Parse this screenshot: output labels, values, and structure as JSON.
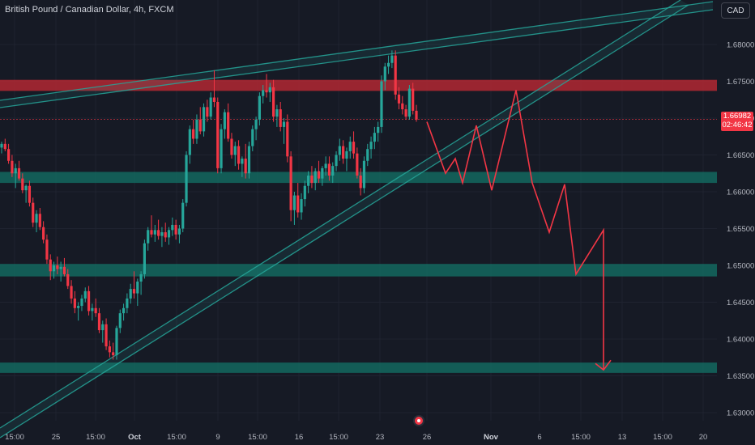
{
  "header": {
    "symbol_title": "British Pound / Canadian Dollar, 4h, FXCM",
    "currency_button": "CAD"
  },
  "price_tag": {
    "price": "1.66982",
    "countdown": "02:46:42"
  },
  "colors": {
    "background": "#161a25",
    "bull": "#26a69a",
    "bear": "#f23645",
    "resistance_zone": "#b22833",
    "support_zone": "#13685f",
    "trendline": "#26a69a",
    "projection": "#f23645",
    "grid": "#1f2330",
    "axis_text": "#b2b5be"
  },
  "chart_data": {
    "type": "candlestick",
    "title": "British Pound / Canadian Dollar, 4h, FXCM",
    "y_axis": {
      "ticks": [
        "1.68000",
        "1.67500",
        "1.67000",
        "1.66500",
        "1.66000",
        "1.65500",
        "1.65000",
        "1.64500",
        "1.64000",
        "1.63500",
        "1.63000"
      ],
      "range": [
        1.628,
        1.686
      ]
    },
    "x_axis": {
      "labels": [
        "15:00",
        "25",
        "15:00",
        "Oct",
        "15:00",
        "9",
        "15:00",
        "16",
        "15:00",
        "23",
        "26",
        "Nov",
        "6",
        "15:00",
        "13",
        "15:00",
        "20"
      ]
    },
    "current_price": 1.66982,
    "zones": [
      {
        "kind": "resistance",
        "low": 1.6737,
        "high": 1.6752
      },
      {
        "kind": "support",
        "low": 1.6612,
        "high": 1.6627
      },
      {
        "kind": "support",
        "low": 1.6485,
        "high": 1.6502
      },
      {
        "kind": "support",
        "low": 1.6354,
        "high": 1.6368
      }
    ],
    "candles_ohlc": [
      [
        1.666,
        1.6668,
        1.6652,
        1.6665
      ],
      [
        1.6665,
        1.6672,
        1.6655,
        1.6658
      ],
      [
        1.6658,
        1.6665,
        1.6638,
        1.6642
      ],
      [
        1.6642,
        1.665,
        1.662,
        1.6625
      ],
      [
        1.6625,
        1.6638,
        1.6605,
        1.6632
      ],
      [
        1.6632,
        1.6642,
        1.6615,
        1.6618
      ],
      [
        1.6618,
        1.6625,
        1.6598,
        1.6602
      ],
      [
        1.6602,
        1.661,
        1.6585,
        1.6608
      ],
      [
        1.6608,
        1.6615,
        1.658,
        1.6585
      ],
      [
        1.6585,
        1.6592,
        1.6552,
        1.6558
      ],
      [
        1.6558,
        1.6575,
        1.6545,
        1.657
      ],
      [
        1.657,
        1.6578,
        1.6548,
        1.6552
      ],
      [
        1.6552,
        1.656,
        1.653,
        1.6535
      ],
      [
        1.6535,
        1.6542,
        1.6502,
        1.6508
      ],
      [
        1.6508,
        1.6515,
        1.648,
        1.6492
      ],
      [
        1.6492,
        1.6505,
        1.6482,
        1.65
      ],
      [
        1.65,
        1.6512,
        1.6488,
        1.6495
      ],
      [
        1.6495,
        1.6505,
        1.6478,
        1.6498
      ],
      [
        1.6498,
        1.651,
        1.6485,
        1.6488
      ],
      [
        1.6488,
        1.6495,
        1.6468,
        1.6472
      ],
      [
        1.6472,
        1.648,
        1.6448,
        1.6455
      ],
      [
        1.6455,
        1.6465,
        1.6435,
        1.6442
      ],
      [
        1.6442,
        1.645,
        1.6425,
        1.6445
      ],
      [
        1.6445,
        1.646,
        1.6438,
        1.6455
      ],
      [
        1.6455,
        1.647,
        1.645,
        1.6465
      ],
      [
        1.6465,
        1.6472,
        1.6432,
        1.6438
      ],
      [
        1.6438,
        1.6448,
        1.6425,
        1.6442
      ],
      [
        1.6442,
        1.6455,
        1.643,
        1.6435
      ],
      [
        1.6435,
        1.6442,
        1.6408,
        1.6412
      ],
      [
        1.6412,
        1.6425,
        1.6395,
        1.642
      ],
      [
        1.642,
        1.6428,
        1.6385,
        1.639
      ],
      [
        1.639,
        1.6398,
        1.6375,
        1.6382
      ],
      [
        1.6382,
        1.6395,
        1.6372,
        1.6378
      ],
      [
        1.6378,
        1.6418,
        1.6372,
        1.6415
      ],
      [
        1.6415,
        1.644,
        1.6408,
        1.6435
      ],
      [
        1.6435,
        1.6448,
        1.6425,
        1.6442
      ],
      [
        1.6442,
        1.6462,
        1.6435,
        1.6455
      ],
      [
        1.6455,
        1.6475,
        1.6448,
        1.6468
      ],
      [
        1.6468,
        1.6492,
        1.6455,
        1.6462
      ],
      [
        1.6462,
        1.6482,
        1.6445,
        1.6478
      ],
      [
        1.6478,
        1.6492,
        1.646,
        1.6488
      ],
      [
        1.6488,
        1.6535,
        1.6482,
        1.653
      ],
      [
        1.653,
        1.6552,
        1.652,
        1.6548
      ],
      [
        1.6548,
        1.6568,
        1.6538,
        1.6542
      ],
      [
        1.6542,
        1.6555,
        1.6532,
        1.6548
      ],
      [
        1.6548,
        1.6562,
        1.6535,
        1.654
      ],
      [
        1.654,
        1.6552,
        1.6525,
        1.6545
      ],
      [
        1.6545,
        1.6558,
        1.6532,
        1.6538
      ],
      [
        1.6538,
        1.6552,
        1.6528,
        1.6548
      ],
      [
        1.6548,
        1.6565,
        1.654,
        1.6555
      ],
      [
        1.6555,
        1.6562,
        1.6535,
        1.6542
      ],
      [
        1.6542,
        1.6555,
        1.653,
        1.655
      ],
      [
        1.655,
        1.659,
        1.6545,
        1.6585
      ],
      [
        1.6585,
        1.6655,
        1.658,
        1.665
      ],
      [
        1.665,
        1.669,
        1.6638,
        1.6685
      ],
      [
        1.6685,
        1.6698,
        1.6665,
        1.6672
      ],
      [
        1.6672,
        1.6705,
        1.6665,
        1.6698
      ],
      [
        1.6698,
        1.6715,
        1.6678,
        1.6682
      ],
      [
        1.6682,
        1.672,
        1.6675,
        1.6715
      ],
      [
        1.6715,
        1.6725,
        1.6695,
        1.6702
      ],
      [
        1.6702,
        1.6735,
        1.6698,
        1.6728
      ],
      [
        1.6728,
        1.6765,
        1.6715,
        1.6722
      ],
      [
        1.6722,
        1.6728,
        1.6625,
        1.6632
      ],
      [
        1.6632,
        1.6692,
        1.6625,
        1.6685
      ],
      [
        1.6685,
        1.6712,
        1.6672,
        1.6708
      ],
      [
        1.6708,
        1.672,
        1.6668,
        1.6672
      ],
      [
        1.6672,
        1.668,
        1.6645,
        1.665
      ],
      [
        1.665,
        1.6668,
        1.6635,
        1.6662
      ],
      [
        1.6662,
        1.667,
        1.663,
        1.6638
      ],
      [
        1.6638,
        1.6648,
        1.662,
        1.6645
      ],
      [
        1.6645,
        1.6665,
        1.6618,
        1.6625
      ],
      [
        1.6625,
        1.6668,
        1.6618,
        1.6662
      ],
      [
        1.6662,
        1.669,
        1.6655,
        1.6685
      ],
      [
        1.6685,
        1.6702,
        1.667,
        1.6698
      ],
      [
        1.6698,
        1.6735,
        1.669,
        1.673
      ],
      [
        1.673,
        1.6745,
        1.672,
        1.6738
      ],
      [
        1.6738,
        1.676,
        1.6728,
        1.6735
      ],
      [
        1.6735,
        1.6748,
        1.6722,
        1.6742
      ],
      [
        1.6742,
        1.6752,
        1.6695,
        1.6702
      ],
      [
        1.6702,
        1.6718,
        1.6688,
        1.6712
      ],
      [
        1.6712,
        1.6722,
        1.6682,
        1.6688
      ],
      [
        1.6688,
        1.67,
        1.6665,
        1.6695
      ],
      [
        1.6695,
        1.6705,
        1.664,
        1.6648
      ],
      [
        1.6648,
        1.6655,
        1.656,
        1.6575
      ],
      [
        1.6575,
        1.66,
        1.6555,
        1.6595
      ],
      [
        1.6595,
        1.6612,
        1.6565,
        1.6572
      ],
      [
        1.6572,
        1.6598,
        1.6562,
        1.659
      ],
      [
        1.659,
        1.6615,
        1.658,
        1.6608
      ],
      [
        1.6608,
        1.6628,
        1.6598,
        1.6622
      ],
      [
        1.6622,
        1.6635,
        1.6605,
        1.6612
      ],
      [
        1.6612,
        1.6632,
        1.6602,
        1.6628
      ],
      [
        1.6628,
        1.6642,
        1.6612,
        1.6618
      ],
      [
        1.6618,
        1.6635,
        1.6608,
        1.6632
      ],
      [
        1.6632,
        1.6648,
        1.6622,
        1.6638
      ],
      [
        1.6638,
        1.6648,
        1.6615,
        1.6622
      ],
      [
        1.6622,
        1.664,
        1.6612,
        1.6635
      ],
      [
        1.6635,
        1.6655,
        1.6628,
        1.665
      ],
      [
        1.665,
        1.6672,
        1.6642,
        1.6662
      ],
      [
        1.6662,
        1.667,
        1.6638,
        1.6645
      ],
      [
        1.6645,
        1.666,
        1.6628,
        1.6655
      ],
      [
        1.6655,
        1.6675,
        1.6645,
        1.6668
      ],
      [
        1.6668,
        1.6682,
        1.6645,
        1.6652
      ],
      [
        1.6652,
        1.666,
        1.6618,
        1.6622
      ],
      [
        1.6622,
        1.6632,
        1.6595,
        1.6605
      ],
      [
        1.6605,
        1.6648,
        1.6598,
        1.6642
      ],
      [
        1.6642,
        1.6665,
        1.6635,
        1.6658
      ],
      [
        1.6658,
        1.6675,
        1.6645,
        1.6668
      ],
      [
        1.6668,
        1.6688,
        1.6658,
        1.668
      ],
      [
        1.668,
        1.6695,
        1.6668,
        1.6688
      ],
      [
        1.6688,
        1.6758,
        1.668,
        1.675
      ],
      [
        1.675,
        1.6775,
        1.6738,
        1.677
      ],
      [
        1.677,
        1.6785,
        1.676,
        1.6775
      ],
      [
        1.6775,
        1.6792,
        1.6768,
        1.6785
      ],
      [
        1.6785,
        1.6792,
        1.6725,
        1.6732
      ],
      [
        1.6732,
        1.6742,
        1.6712,
        1.672
      ],
      [
        1.672,
        1.673,
        1.6705,
        1.6712
      ],
      [
        1.6712,
        1.6718,
        1.6698,
        1.6702
      ],
      [
        1.6702,
        1.6745,
        1.6698,
        1.674
      ],
      [
        1.674,
        1.6748,
        1.6705,
        1.671
      ],
      [
        1.671,
        1.6718,
        1.6695,
        1.6698
      ]
    ],
    "projection_path": [
      1.6695,
      1.6625,
      1.6645,
      1.6612,
      1.669,
      1.6602,
      1.6738,
      1.6612,
      1.6545,
      1.661,
      1.6488,
      1.6548,
      1.6358
    ],
    "annotations": [
      "Rising channel trendlines",
      "Ascending support trendline",
      "Projected bearish zigzag path"
    ]
  }
}
